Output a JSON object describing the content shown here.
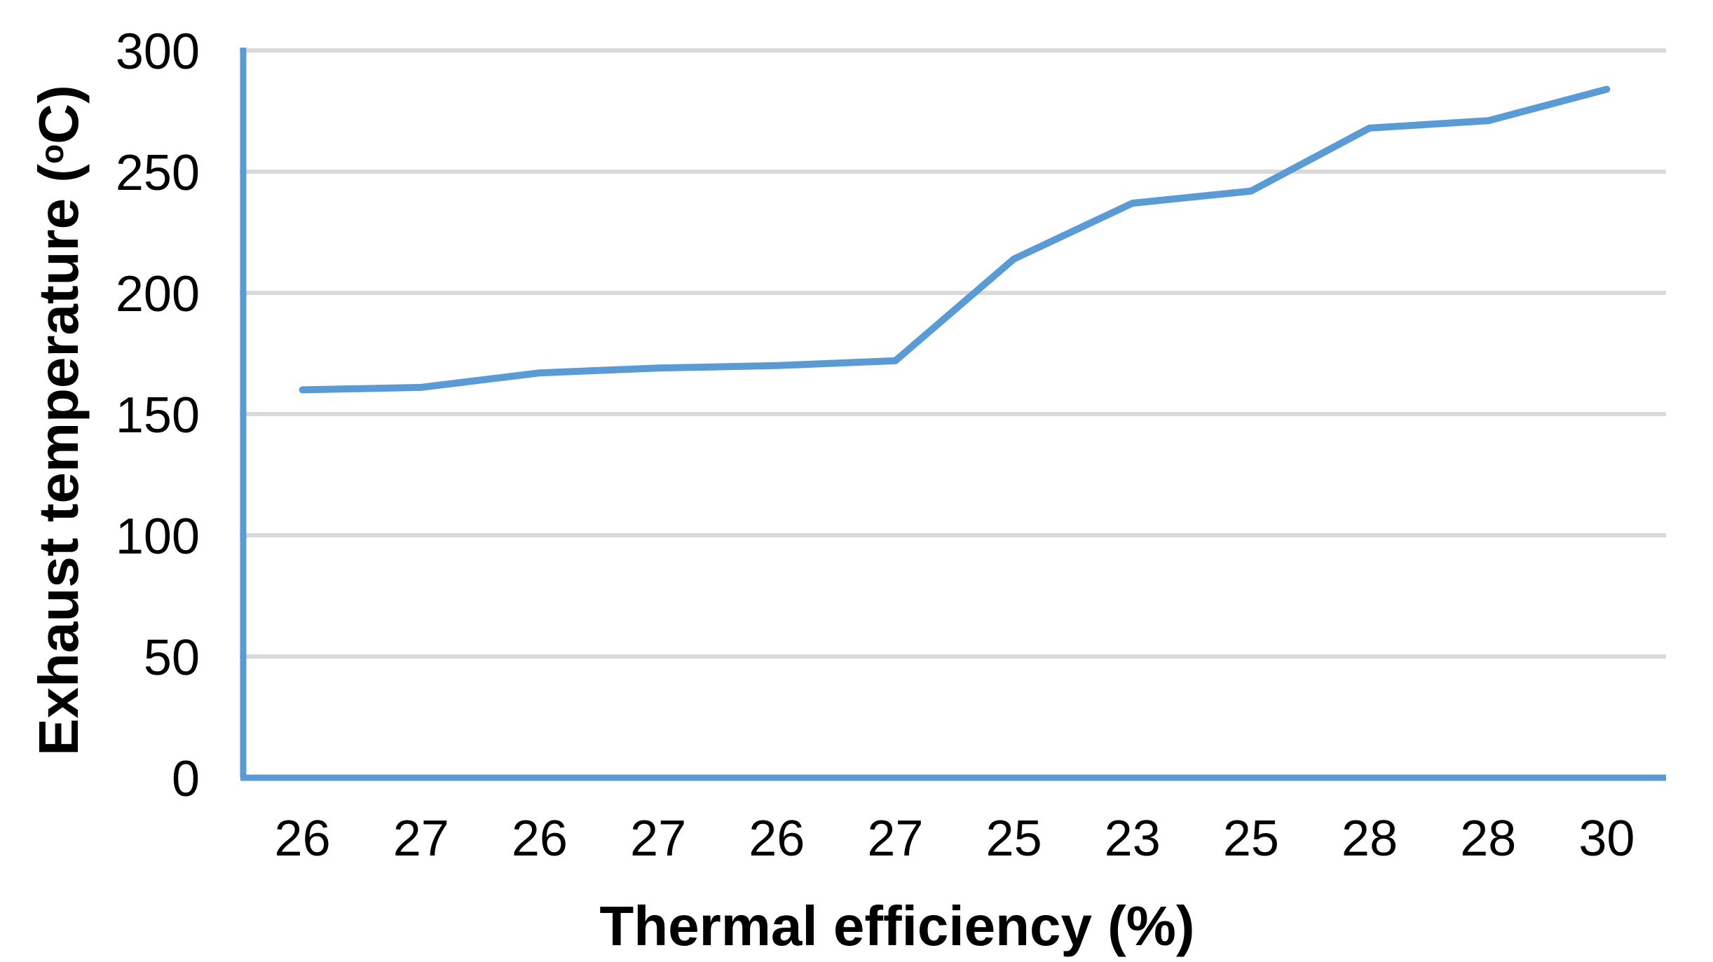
{
  "chart_data": {
    "type": "line",
    "title": "",
    "xlabel": "Thermal efficiency (%)",
    "ylabel": "Exhaust temperature (°C)",
    "ylabel_parts": {
      "prefix": "Exhaust temperature (",
      "superscript": "o",
      "suffix": "C)"
    },
    "categories": [
      "26",
      "27",
      "26",
      "27",
      "26",
      "27",
      "25",
      "23",
      "25",
      "28",
      "28",
      "30"
    ],
    "series": [
      {
        "name": "Exhaust temperature",
        "values": [
          160,
          161,
          167,
          169,
          170,
          172,
          214,
          237,
          242,
          268,
          271,
          284
        ]
      }
    ],
    "ylim": [
      0,
      300
    ],
    "yticks": [
      "0",
      "50",
      "100",
      "150",
      "200",
      "250",
      "300"
    ],
    "grid": "horizontal",
    "legend_position": "none",
    "colors": {
      "line": "#5B9BD5",
      "axis": "#5B9BD5",
      "gridline": "#D9D9D9",
      "text": "#000000",
      "background": "#FFFFFF"
    }
  }
}
